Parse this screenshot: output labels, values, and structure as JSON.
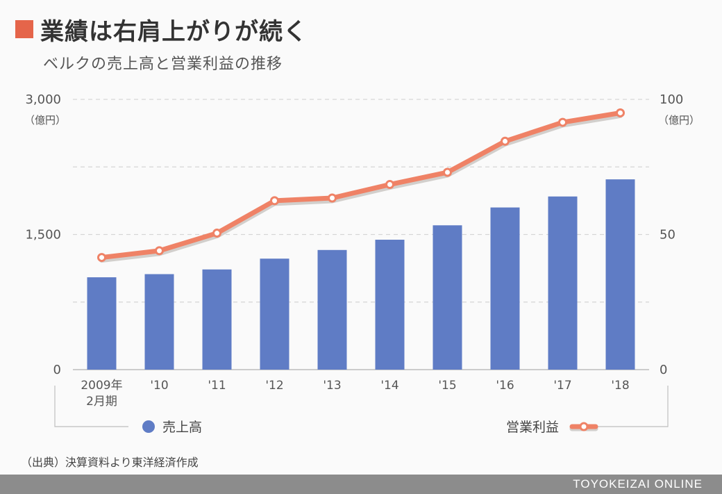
{
  "title": "業績は右肩上がりが続く",
  "subtitle": "ベルクの売上高と営業利益の推移",
  "source": "（出典）決算資料より東洋経済作成",
  "brand": "TOYOKEIZAI ONLINE",
  "colors": {
    "accent": "#e5654a",
    "bar": "#5f7cc5",
    "line": "#ef8266",
    "grid": "#d6d6d6",
    "text": "#555555"
  },
  "chart_data": {
    "type": "bar",
    "categories": [
      "2009年\n2月期",
      "'10",
      "'11",
      "'12",
      "'13",
      "'14",
      "'15",
      "'16",
      "'17",
      "'18"
    ],
    "y_left": {
      "ticks": [
        "3,000",
        "1,500",
        "0"
      ],
      "unit": "（億円）",
      "ylim": [
        0,
        3000
      ]
    },
    "y_right": {
      "ticks": [
        "100",
        "50",
        "0"
      ],
      "unit": "（億円）",
      "ylim": [
        0,
        100
      ]
    },
    "grid": true,
    "legend_position": "bottom",
    "series": [
      {
        "name": "売上高",
        "type": "bar",
        "axis": "left",
        "values": [
          1025,
          1060,
          1112,
          1232,
          1328,
          1442,
          1602,
          1800,
          1922,
          2112
        ]
      },
      {
        "name": "営業利益",
        "type": "line",
        "axis": "right",
        "values": [
          41.5,
          44,
          50.5,
          62.5,
          63.5,
          68.5,
          73,
          84.5,
          91.5,
          95
        ]
      }
    ]
  }
}
